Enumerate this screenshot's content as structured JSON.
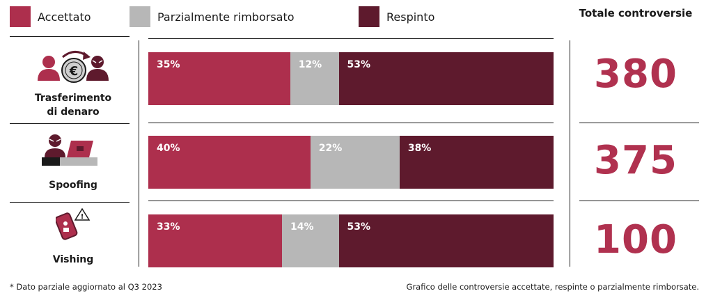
{
  "colors": {
    "accepted": "#ad2f4d",
    "partial": "#b7b7b7",
    "rejected": "#5e1a2d",
    "total": "#b0314f"
  },
  "legend": {
    "accepted": "Accettato",
    "partial": "Parzialmente rimborsato",
    "rejected": "Respinto"
  },
  "total_header": "Totale controversie",
  "categories": [
    {
      "label_line1": "Trasferimento",
      "label_line2": "di denaro",
      "icon": "money-transfer-icon",
      "labels": {
        "accepted": "35%",
        "partial": "12%",
        "rejected": "53%"
      },
      "total": "380"
    },
    {
      "label_line1": "Spoofing",
      "label_line2": "",
      "icon": "spoofing-computer-icon",
      "labels": {
        "accepted": "40%",
        "partial": "22%",
        "rejected": "38%"
      },
      "total": "375"
    },
    {
      "label_line1": "Vishing",
      "label_line2": "",
      "icon": "phone-warning-icon",
      "labels": {
        "accepted": "33%",
        "partial": "14%",
        "rejected": "53%"
      },
      "total": "100"
    }
  ],
  "footnote": "* Dato parziale aggiornato al Q3 2023",
  "caption": "Grafico delle controversie accettate, respinte o parzialmente rimborsate.",
  "chart_data": {
    "type": "bar",
    "orientation": "horizontal",
    "stacked": "100%",
    "title": "",
    "categories": [
      "Trasferimento di denaro",
      "Spoofing",
      "Vishing"
    ],
    "series": [
      {
        "name": "Accettato",
        "values": [
          35,
          40,
          33
        ]
      },
      {
        "name": "Parzialmente rimborsato",
        "values": [
          12,
          22,
          14
        ]
      },
      {
        "name": "Respinto",
        "values": [
          53,
          38,
          53
        ]
      }
    ],
    "totals_label": "Totale controversie",
    "totals": [
      380,
      375,
      100
    ],
    "legend_position": "top",
    "grid": false
  }
}
